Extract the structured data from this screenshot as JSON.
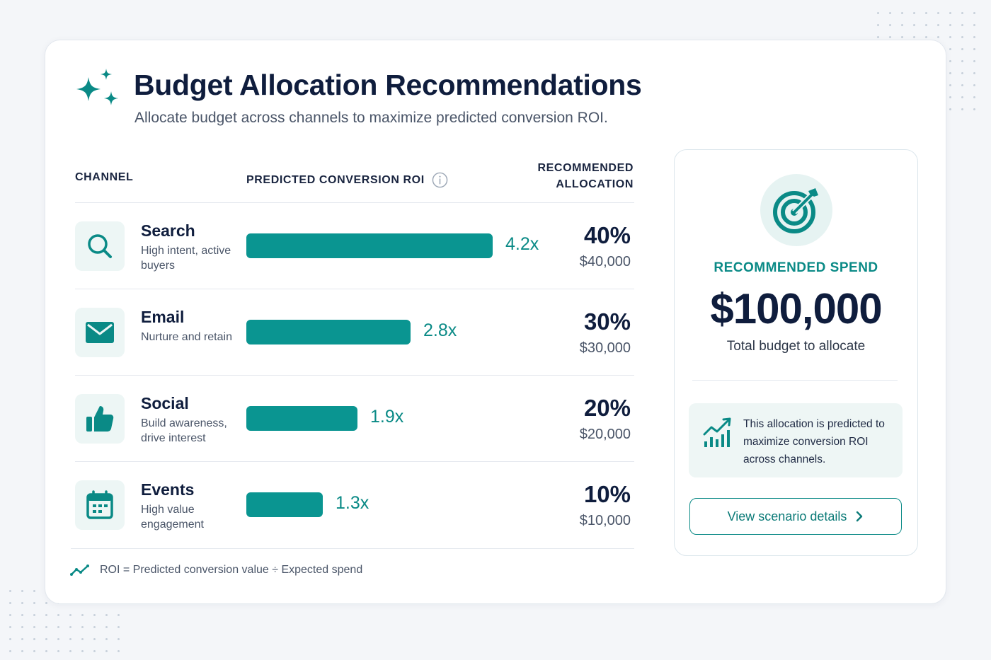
{
  "header": {
    "title": "Budget Allocation Recommendations",
    "subtitle": "Allocate budget across channels to maximize predicted conversion ROI."
  },
  "table": {
    "col_channel": "CHANNEL",
    "col_roi": "PREDICTED CONVERSION ROI",
    "col_alloc_line1": "RECOMMENDED",
    "col_alloc_line2": "ALLOCATION",
    "rows": [
      {
        "name": "Search",
        "desc": "High intent, active buyers",
        "roi_value": 4.2,
        "roi": "4.2x",
        "pct": "40%",
        "amount": "$40,000",
        "icon": "search-icon"
      },
      {
        "name": "Email",
        "desc": "Nurture and retain",
        "roi_value": 2.8,
        "roi": "2.8x",
        "pct": "30%",
        "amount": "$30,000",
        "icon": "mail-icon"
      },
      {
        "name": "Social",
        "desc": "Build awareness, drive interest",
        "roi_value": 1.9,
        "roi": "1.9x",
        "pct": "20%",
        "amount": "$20,000",
        "icon": "thumbs-up-icon"
      },
      {
        "name": "Events",
        "desc": "High value engagement",
        "roi_value": 1.3,
        "roi": "1.3x",
        "pct": "10%",
        "amount": "$10,000",
        "icon": "calendar-icon"
      }
    ],
    "footnote": "ROI = Predicted conversion value ÷ Expected spend"
  },
  "summary": {
    "label": "RECOMMENDED SPEND",
    "amount": "$100,000",
    "caption": "Total budget to allocate",
    "note": "This allocation is predicted to maximize conversion ROI across channels.",
    "button_label": "View scenario details"
  },
  "colors": {
    "accent": "#0a9591",
    "accent_text": "#0a8a86",
    "navy": "#0f1d3d",
    "icon_bg": "#edf6f5"
  }
}
